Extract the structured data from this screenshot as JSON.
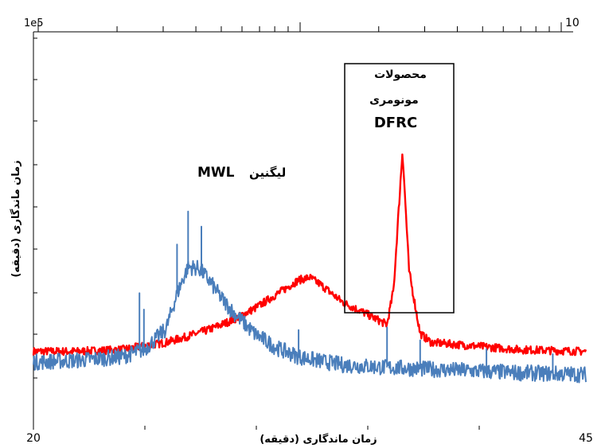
{
  "chart_data": {
    "type": "line",
    "xlabel": "زمان ماندگاری (دقیقه)",
    "ylabel": "زمان ماندگاری (دقیقه)",
    "xlim": [
      20,
      45
    ],
    "x_tick_labels": [
      "20",
      "45"
    ],
    "top_axis_labels": [
      "1e5",
      "10"
    ],
    "grid": false,
    "annotations": [
      {
        "text": "MWL",
        "style": "bold"
      },
      {
        "text": "لیگنین",
        "style": "bold"
      },
      {
        "text_lines": [
          "محصولات",
          "مونومری",
          "DFRC"
        ],
        "style": "bold",
        "boxed": true
      }
    ],
    "series": [
      {
        "color": "#4a7ebb",
        "x": [
          20,
          22,
          24,
          25,
          26,
          26.5,
          27,
          27.5,
          28,
          28.5,
          29,
          30,
          31,
          32,
          33,
          34,
          36,
          38,
          40,
          42,
          45
        ],
        "y": [
          5.8,
          6.0,
          6.4,
          7.2,
          9.5,
          13.5,
          16.5,
          16.3,
          14.8,
          13.0,
          11.5,
          9.0,
          7.4,
          6.4,
          5.9,
          5.5,
          5.2,
          5.0,
          4.8,
          4.6,
          4.4
        ]
      },
      {
        "color": "#ff0000",
        "x": [
          20,
          22,
          24,
          26,
          27,
          28,
          29,
          30,
          31,
          32,
          32.5,
          33,
          34,
          35,
          36,
          36.3,
          36.7,
          37,
          37.5,
          38,
          40,
          42,
          45
        ],
        "y": [
          7.0,
          7.0,
          7.2,
          8.0,
          8.7,
          9.5,
          10.5,
          11.8,
          13.4,
          15.0,
          15.3,
          14.5,
          12.5,
          11.3,
          10.0,
          14.0,
          29.5,
          16.0,
          9.0,
          8.0,
          7.6,
          7.2,
          7.0
        ]
      }
    ]
  }
}
